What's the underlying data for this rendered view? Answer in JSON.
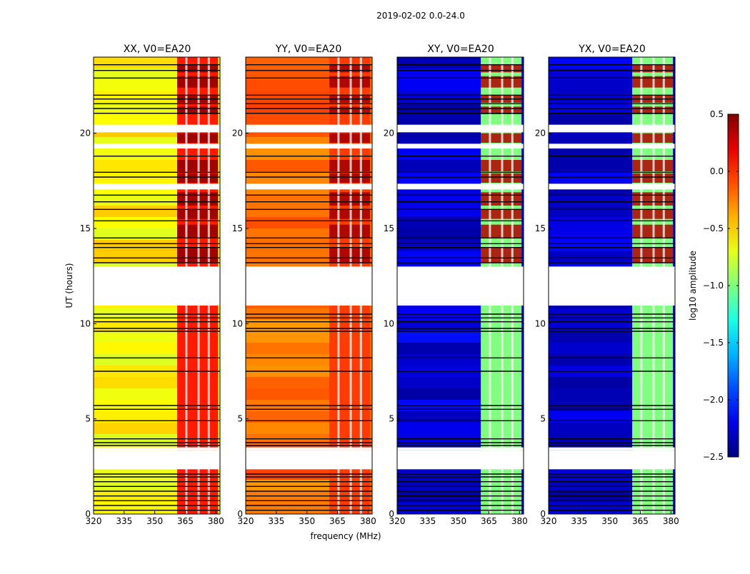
{
  "chart_data": {
    "type": "heatmap",
    "title": "2019-02-02 0.0-24.0",
    "xlabel": "frequency (MHz)",
    "ylabel": "UT (hours)",
    "xlim": [
      320,
      382
    ],
    "ylim": [
      0,
      24
    ],
    "xticks": [
      320,
      335,
      350,
      365,
      380
    ],
    "yticks": [
      0,
      5,
      10,
      15,
      20
    ],
    "panels": [
      {
        "title": "XX, V0=EA20",
        "base_log_amp": -0.6,
        "band_log_amp": 0.05,
        "flare_log_amp": 0.45
      },
      {
        "title": "YY, V0=EA20",
        "base_log_amp": -0.2,
        "band_log_amp": -0.05,
        "flare_log_amp": 0.4
      },
      {
        "title": "XY, V0=EA20",
        "base_log_amp": -2.25,
        "band_log_amp": -1.0,
        "flare_log_amp": 0.35
      },
      {
        "title": "YX, V0=EA20",
        "base_log_amp": -2.25,
        "band_log_amp": -1.0,
        "flare_log_amp": 0.35
      }
    ],
    "colorbar": {
      "label": "log10 amplitude",
      "range": [
        -2.5,
        0.5
      ],
      "ticks": [
        "0.5",
        "0.0",
        "−0.5",
        "−1.0",
        "−1.5",
        "−2.0",
        "−2.5"
      ],
      "tick_values": [
        0.5,
        0.0,
        -0.5,
        -1.0,
        -1.5,
        -2.0,
        -2.5
      ],
      "colormap": "jet"
    },
    "rfi_band_mhz": [
      361,
      381
    ],
    "rfi_channel_gaps_mhz": [
      365.5,
      371.5,
      376.5
    ],
    "flagged_ut_ranges": [
      [
        2.35,
        3.35
      ],
      [
        3.35,
        3.5
      ],
      [
        10.95,
        13.0
      ],
      [
        20.05,
        20.45
      ],
      [
        19.2,
        19.45
      ],
      [
        17.05,
        17.35
      ]
    ],
    "flagged_lines_ut": [
      0.2,
      0.45,
      0.7,
      0.95,
      1.2,
      1.45,
      1.7,
      1.95,
      2.1,
      3.6,
      3.75,
      3.95,
      4.9,
      5.5,
      5.7,
      7.5,
      8.2,
      9.6,
      9.75,
      10.1,
      10.3,
      10.5,
      13.2,
      13.45,
      14.0,
      14.2,
      14.5,
      15.4,
      16.0,
      16.4,
      16.75,
      17.7,
      17.95,
      18.8,
      21.05,
      21.3,
      21.55,
      21.8,
      22.0,
      22.9,
      23.3,
      23.6
    ]
  }
}
